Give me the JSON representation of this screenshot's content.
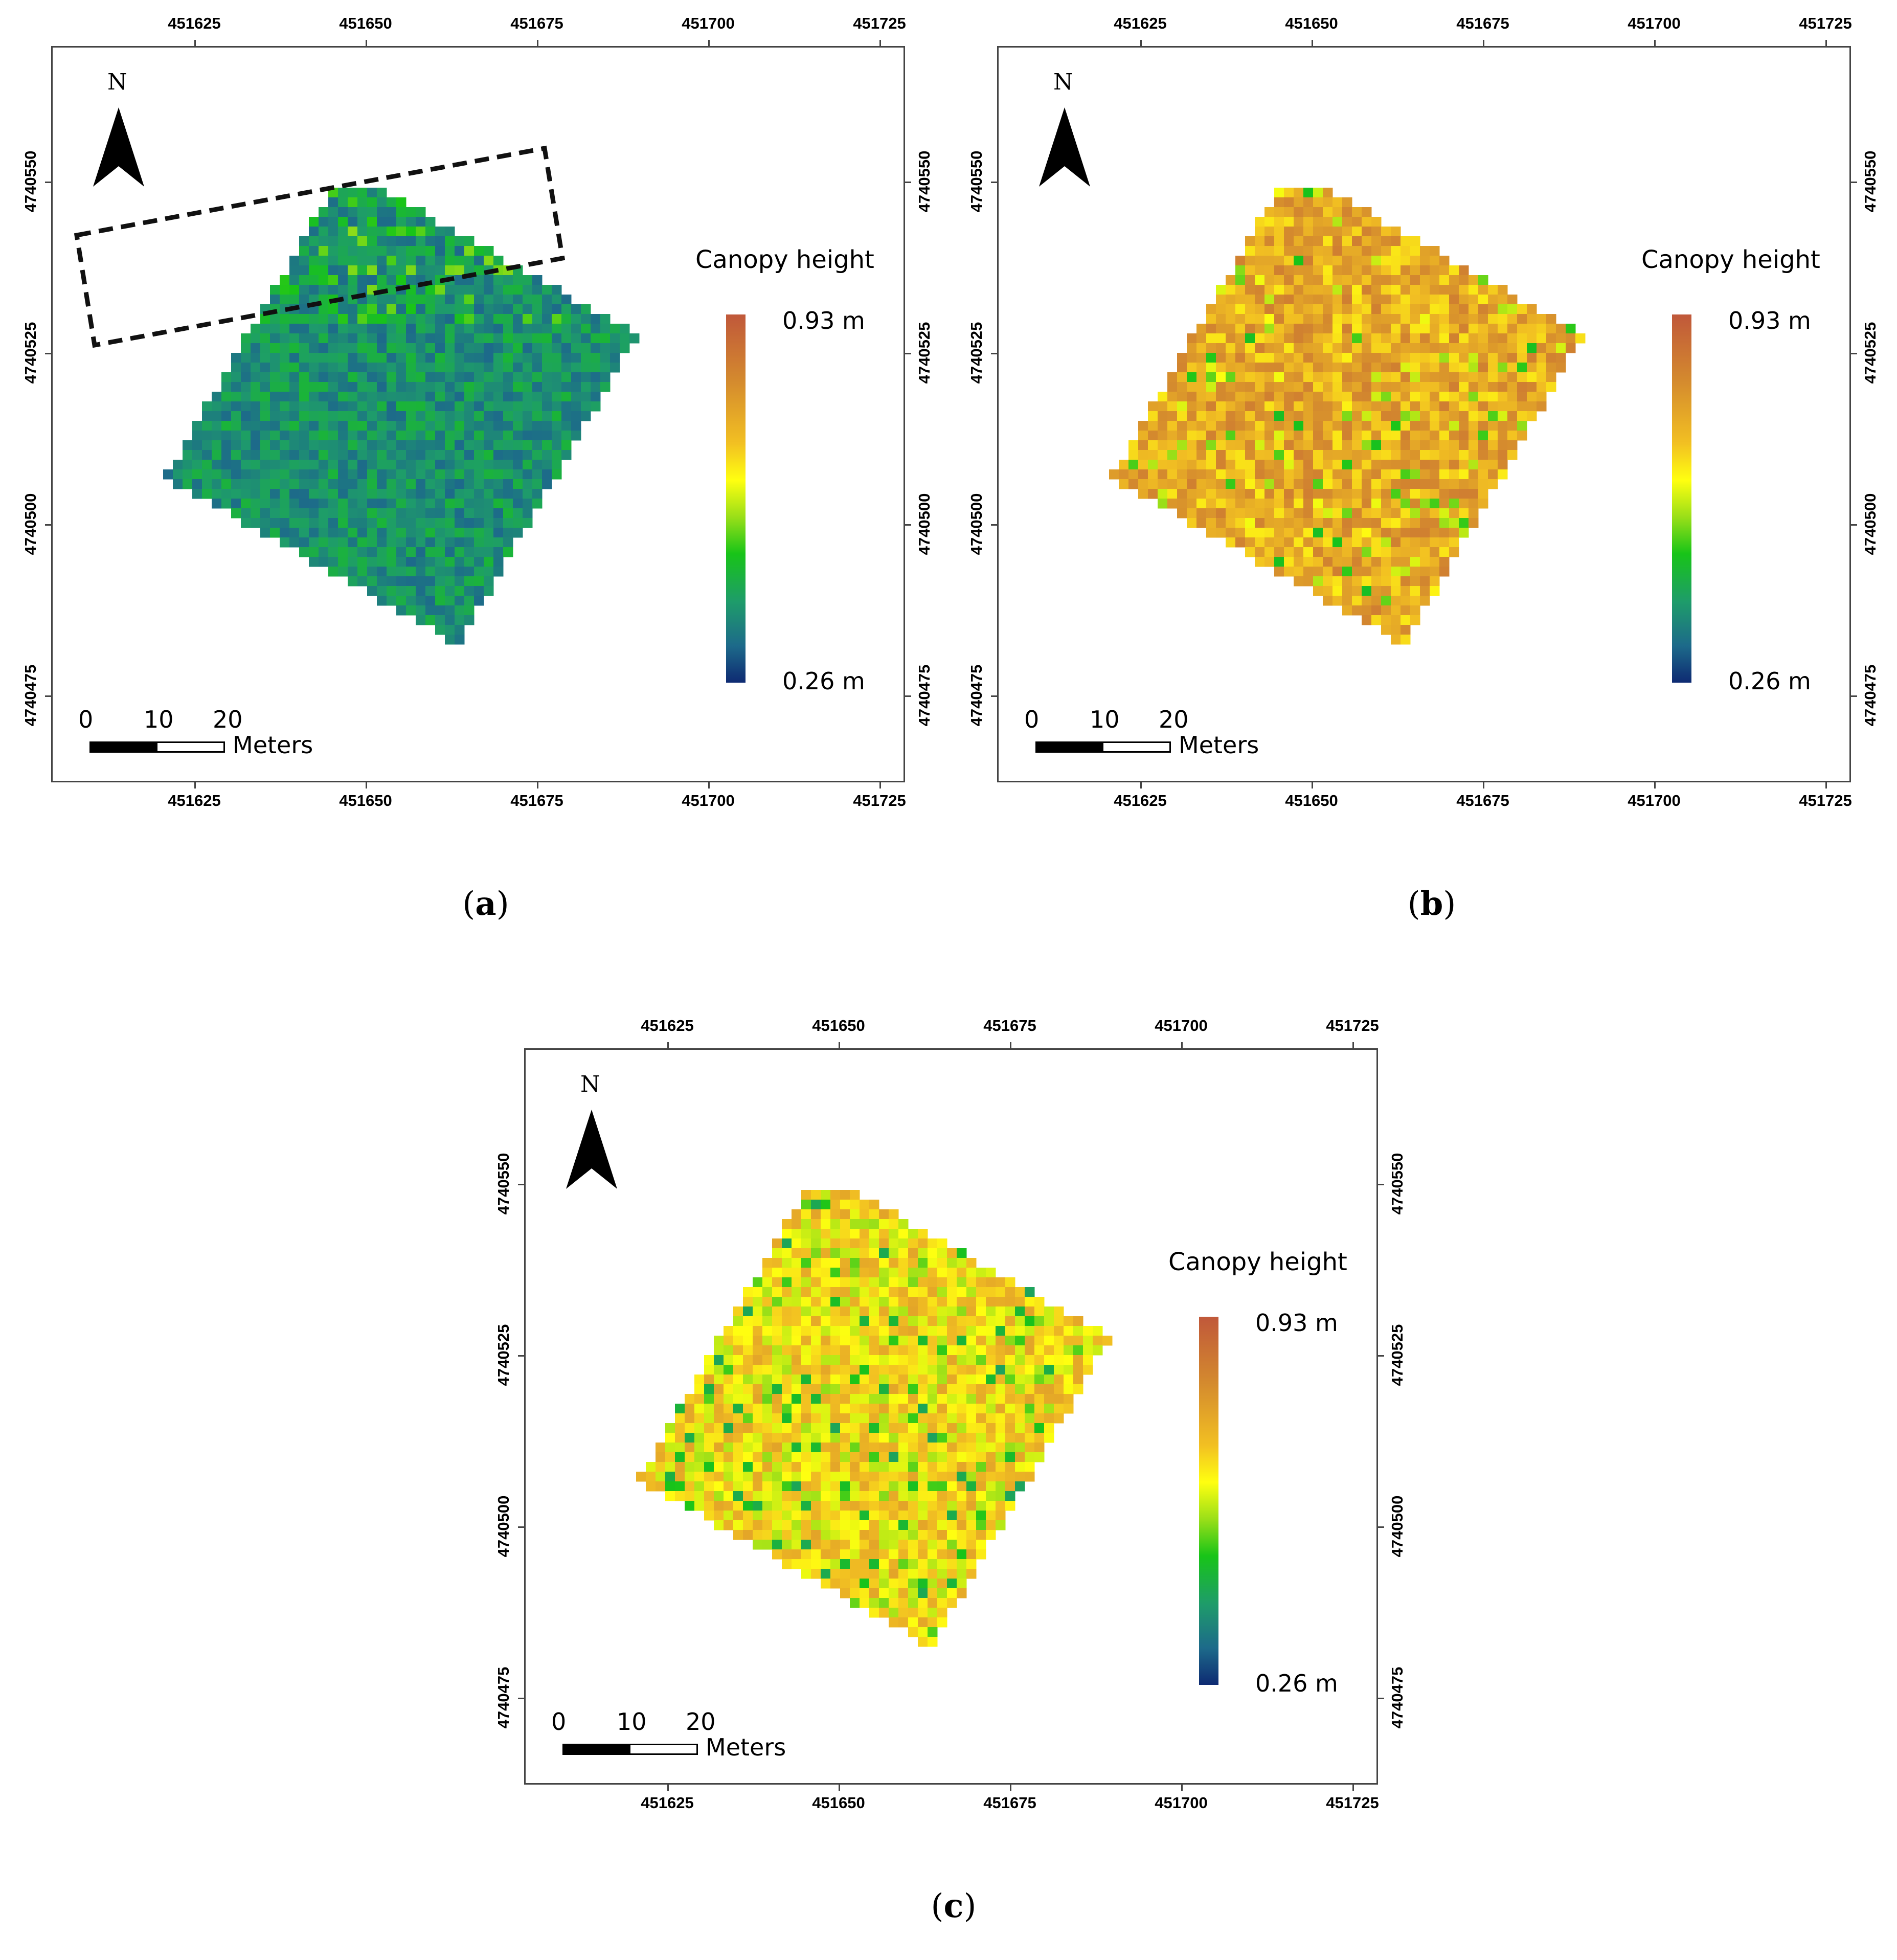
{
  "panels": [
    {
      "id": "a",
      "caption_letter": "a",
      "palette_shift": "low",
      "has_selection_box": true
    },
    {
      "id": "b",
      "caption_letter": "b",
      "palette_shift": "high",
      "has_selection_box": false
    },
    {
      "id": "c",
      "caption_letter": "c",
      "palette_shift": "mid",
      "has_selection_box": false
    }
  ],
  "axes": {
    "x_ticks": [
      "451625",
      "451650",
      "451675",
      "451700",
      "451725"
    ],
    "y_ticks": [
      "4740550",
      "4740525",
      "4740500",
      "4740475"
    ]
  },
  "legend": {
    "title": "Canopy height",
    "max_label": "0.93 m",
    "min_label": "0.26 m",
    "colors": [
      "#c0583a",
      "#f2c022",
      "#ffff10",
      "#18c418",
      "#1e9c6a",
      "#0e2a72"
    ]
  },
  "north_arrow": {
    "label": "N",
    "icon": "north-arrow-icon"
  },
  "scale_bar": {
    "labels": [
      "0",
      "10",
      "20"
    ],
    "unit": "Meters"
  }
}
